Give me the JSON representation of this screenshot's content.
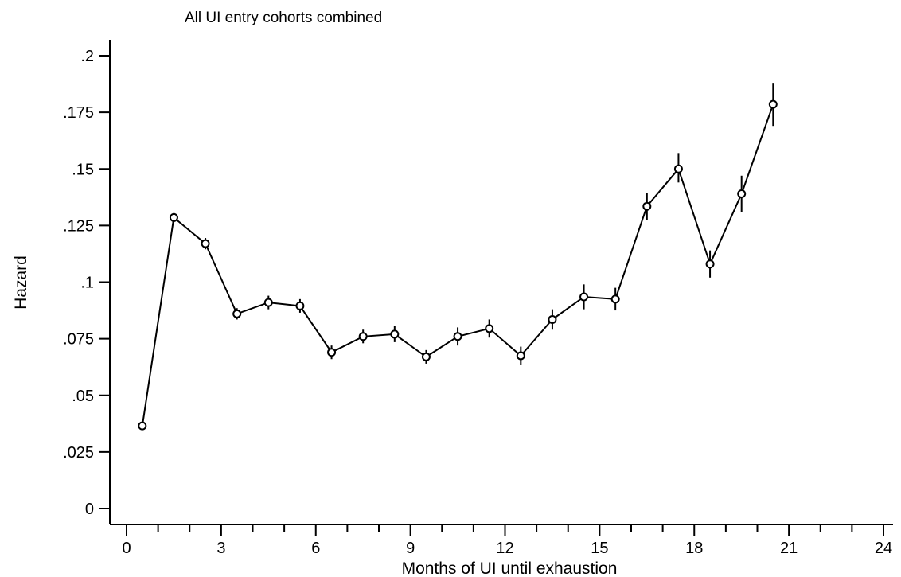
{
  "chart_data": {
    "type": "line",
    "title": "All UI entry cohorts combined",
    "xlabel": "Months of UI until exhaustion",
    "ylabel": "Hazard",
    "xlim": [
      0,
      24
    ],
    "ylim": [
      0,
      0.2
    ],
    "x_major_ticks": [
      0,
      3,
      6,
      9,
      12,
      15,
      18,
      21,
      24
    ],
    "x_major_tick_labels": [
      "0",
      "3",
      "6",
      "9",
      "12",
      "15",
      "18",
      "21",
      "24"
    ],
    "x_minor_tick_step": 1,
    "y_ticks": [
      0,
      0.025,
      0.05,
      0.075,
      0.1,
      0.125,
      0.15,
      0.175,
      0.2
    ],
    "y_tick_labels": [
      "0",
      ".025",
      ".05",
      ".075",
      ".1",
      ".125",
      ".15",
      ".175",
      ".2"
    ],
    "grid": false,
    "legend": "none",
    "marker": "hollow-circle",
    "line_color": "#000000",
    "series": [
      {
        "x": [
          0.5,
          1.5,
          2.5,
          3.5,
          4.5,
          5.5,
          6.5,
          7.5,
          8.5,
          9.5,
          10.5,
          11.5,
          12.5,
          13.5,
          14.5,
          15.5,
          16.5,
          17.5,
          18.5,
          19.5,
          20.5
        ],
        "y": [
          0.0365,
          0.1285,
          0.117,
          0.086,
          0.091,
          0.0895,
          0.069,
          0.076,
          0.077,
          0.067,
          0.076,
          0.0795,
          0.0675,
          0.0835,
          0.0935,
          0.0925,
          0.1335,
          0.15,
          0.108,
          0.139,
          0.1785
        ],
        "ci_low": [
          0.0355,
          0.1265,
          0.1145,
          0.0835,
          0.088,
          0.0865,
          0.066,
          0.073,
          0.0735,
          0.064,
          0.072,
          0.0755,
          0.0635,
          0.079,
          0.088,
          0.0875,
          0.1275,
          0.144,
          0.102,
          0.131,
          0.169
        ],
        "ci_high": [
          0.0375,
          0.1305,
          0.1195,
          0.0885,
          0.094,
          0.0925,
          0.072,
          0.079,
          0.0805,
          0.07,
          0.08,
          0.0835,
          0.0715,
          0.088,
          0.099,
          0.0975,
          0.1395,
          0.157,
          0.114,
          0.147,
          0.188
        ]
      }
    ]
  }
}
